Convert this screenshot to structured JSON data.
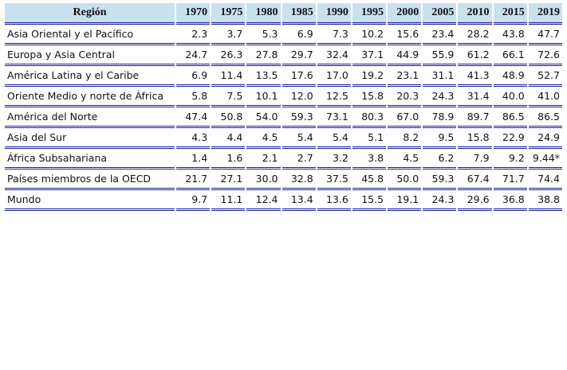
{
  "table": {
    "header": [
      "Región",
      "1970",
      "1975",
      "1980",
      "1985",
      "1990",
      "1995",
      "2000",
      "2005",
      "2010",
      "2015",
      "2019"
    ],
    "rows": [
      [
        "Asia Oriental y el Pacífico",
        "2.3",
        "3.7",
        "5.3",
        "6.9",
        "7.3",
        "10.2",
        "15.6",
        "23.4",
        "28.2",
        "43.8",
        "47.7"
      ],
      [
        "Europa y Asia Central",
        "24.7",
        "26.3",
        "27.8",
        "29.7",
        "32.4",
        "37.1",
        "44.9",
        "55.9",
        "61.2",
        "66.1",
        "72.6"
      ],
      [
        "América Latina y el Caribe",
        "6.9",
        "11.4",
        "13.5",
        "17.6",
        "17.0",
        "19.2",
        "23.1",
        "31.1",
        "41.3",
        "48.9",
        "52.7"
      ],
      [
        "Oriente Medio y norte de África",
        "5.8",
        "7.5",
        "10.1",
        "12.0",
        "12.5",
        "15.8",
        "20.3",
        "24.3",
        "31.4",
        "40.0",
        "41.0"
      ],
      [
        "América del Norte",
        "47.4",
        "50.8",
        "54.0",
        "59.3",
        "73.1",
        "80.3",
        "67.0",
        "78.9",
        "89.7",
        "86.5",
        "86.5"
      ],
      [
        "Asia del Sur",
        "4.3",
        "4.4",
        "4.5",
        "5.4",
        "5.4",
        "5.1",
        "8.2",
        "9.5",
        "15.8",
        "22.9",
        "24.9"
      ],
      [
        "África Subsahariana",
        "1.4",
        "1.6",
        "2.1",
        "2.7",
        "3.2",
        "3.8",
        "4.5",
        "6.2",
        "7.9",
        "9.2",
        "9.44*"
      ],
      [
        "Países miembros de la OECD",
        "21.7",
        "27.1",
        "30.0",
        "32.8",
        "37.5",
        "45.8",
        "50.0",
        "59.3",
        "67.4",
        "71.7",
        "74.4"
      ],
      [
        "Mundo",
        "9.7",
        "11.1",
        "12.4",
        "13.4",
        "13.6",
        "15.5",
        "19.1",
        "24.3",
        "29.6",
        "36.8",
        "38.8"
      ]
    ]
  }
}
